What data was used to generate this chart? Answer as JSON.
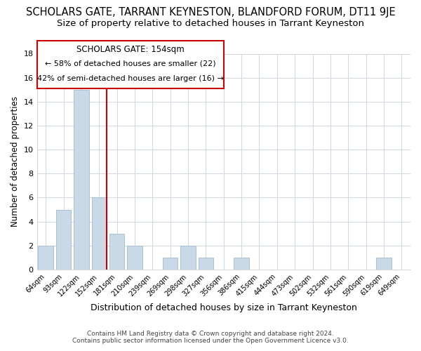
{
  "title": "SCHOLARS GATE, TARRANT KEYNESTON, BLANDFORD FORUM, DT11 9JE",
  "subtitle": "Size of property relative to detached houses in Tarrant Keyneston",
  "xlabel": "Distribution of detached houses by size in Tarrant Keyneston",
  "ylabel": "Number of detached properties",
  "categories": [
    "64sqm",
    "93sqm",
    "122sqm",
    "152sqm",
    "181sqm",
    "210sqm",
    "239sqm",
    "269sqm",
    "298sqm",
    "327sqm",
    "356sqm",
    "386sqm",
    "415sqm",
    "444sqm",
    "473sqm",
    "502sqm",
    "532sqm",
    "561sqm",
    "590sqm",
    "619sqm",
    "649sqm"
  ],
  "values": [
    2,
    5,
    15,
    6,
    3,
    2,
    0,
    1,
    2,
    1,
    0,
    1,
    0,
    0,
    0,
    0,
    0,
    0,
    0,
    1,
    0
  ],
  "bar_color": "#c9d9e8",
  "bar_edge_color": "#aac0d4",
  "marker_line_index": 3,
  "marker_line_color": "#cc0000",
  "ylim": [
    0,
    18
  ],
  "yticks": [
    0,
    2,
    4,
    6,
    8,
    10,
    12,
    14,
    16,
    18
  ],
  "annotation_title": "SCHOLARS GATE: 154sqm",
  "annotation_line1": "← 58% of detached houses are smaller (22)",
  "annotation_line2": "42% of semi-detached houses are larger (16) →",
  "annotation_box_color": "#ffffff",
  "annotation_box_edge": "#cc0000",
  "footer_line1": "Contains HM Land Registry data © Crown copyright and database right 2024.",
  "footer_line2": "Contains public sector information licensed under the Open Government Licence v3.0.",
  "background_color": "#ffffff",
  "grid_color": "#d0d8e0",
  "title_fontsize": 10.5,
  "subtitle_fontsize": 9.5
}
